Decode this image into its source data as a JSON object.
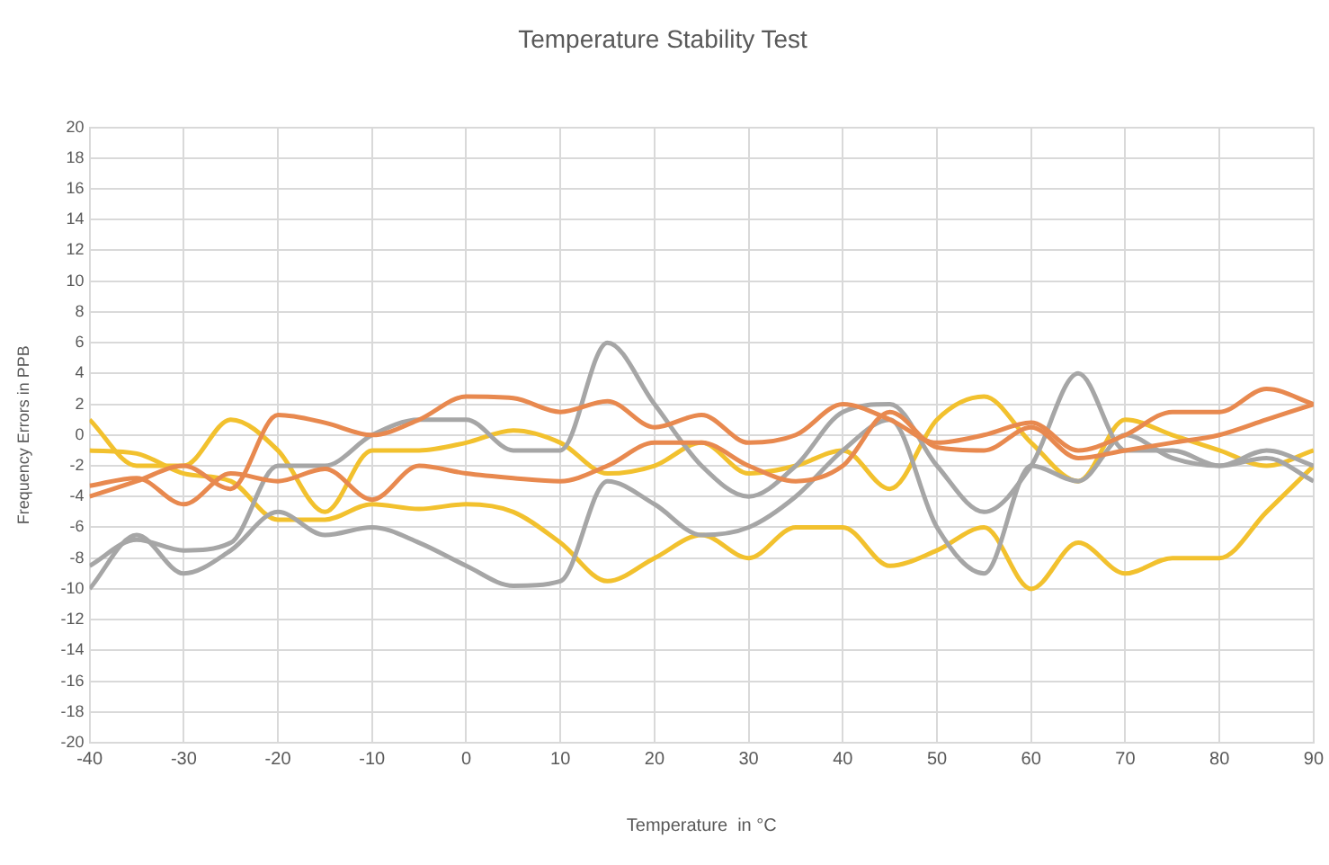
{
  "chart_data": {
    "type": "line",
    "title": "Temperature Stability Test",
    "xlabel": "Temperature  in °C",
    "ylabel": "Frequency Errors in PPB",
    "x": [
      -40,
      -35,
      -30,
      -25,
      -20,
      -15,
      -10,
      -5,
      0,
      5,
      10,
      15,
      20,
      25,
      30,
      35,
      40,
      45,
      50,
      55,
      60,
      65,
      70,
      75,
      80,
      85,
      90
    ],
    "series": [
      {
        "color": "#e8894f",
        "values": [
          -4,
          -3,
          -2,
          -3.5,
          1.3,
          0.8,
          0,
          1,
          2.5,
          2.4,
          1.5,
          2.2,
          0.5,
          1.3,
          -0.5,
          0,
          2,
          1,
          -0.5,
          0,
          0.8,
          -1,
          0,
          1.5,
          1.5,
          3,
          2
        ]
      },
      {
        "color": "#e8894f",
        "values": [
          -3.3,
          -2.8,
          -4.5,
          -2.5,
          -3,
          -2.2,
          -4.2,
          -2,
          -2.5,
          -2.8,
          -3,
          -2,
          -0.5,
          -0.5,
          -2,
          -3,
          -2,
          1.5,
          -0.8,
          -1,
          0.5,
          -1.5,
          -1,
          -0.5,
          0,
          1,
          2
        ]
      },
      {
        "color": "#a6a6a6",
        "values": [
          -8.5,
          -6.8,
          -7.5,
          -7,
          -2,
          -2,
          0,
          1,
          1,
          -1,
          -1,
          6,
          2,
          -2,
          -4,
          -2,
          1.5,
          2,
          -2,
          -5,
          -2,
          4,
          -1,
          -1,
          -2,
          -1,
          -2
        ]
      },
      {
        "color": "#a6a6a6",
        "values": [
          -10,
          -6.5,
          -9,
          -7.5,
          -5,
          -6.5,
          -6,
          -7,
          -8.5,
          -9.8,
          -9.5,
          -3,
          -4.5,
          -6.5,
          -6,
          -4,
          -1,
          1,
          -6,
          -9,
          -2,
          -3,
          0,
          -1.5,
          -2,
          -1.5,
          -3
        ]
      },
      {
        "color": "#f2c12e",
        "values": [
          1,
          -2,
          -2,
          1,
          -1,
          -5,
          -1,
          -1,
          -0.5,
          0.3,
          -0.5,
          -2.5,
          -2,
          -0.5,
          -2.5,
          -2,
          -1,
          -3.5,
          1,
          2.5,
          -0.5,
          -3,
          1,
          0,
          -1,
          -2,
          -1
        ]
      },
      {
        "color": "#f2c12e",
        "values": [
          -1,
          -1.2,
          -2.5,
          -3,
          -5.5,
          -5.5,
          -4.5,
          -4.8,
          -4.5,
          -5,
          -7,
          -9.5,
          -8,
          -6.5,
          -8,
          -6,
          -6,
          -8.5,
          -7.5,
          -6,
          -10,
          -7,
          -9,
          -8,
          -8,
          -5,
          -2
        ]
      }
    ],
    "xlim": [
      -40,
      90
    ],
    "xticks": [
      -40,
      -30,
      -20,
      -10,
      0,
      10,
      20,
      30,
      40,
      50,
      60,
      70,
      80,
      90
    ],
    "ylim": [
      -20,
      20
    ],
    "yticks": [
      -20,
      -18,
      -16,
      -14,
      -12,
      -10,
      -8,
      -6,
      -4,
      -2,
      0,
      2,
      4,
      6,
      8,
      10,
      12,
      14,
      16,
      18,
      20
    ],
    "grid": true,
    "legend": false,
    "marker": "none",
    "line_style": "solid"
  }
}
